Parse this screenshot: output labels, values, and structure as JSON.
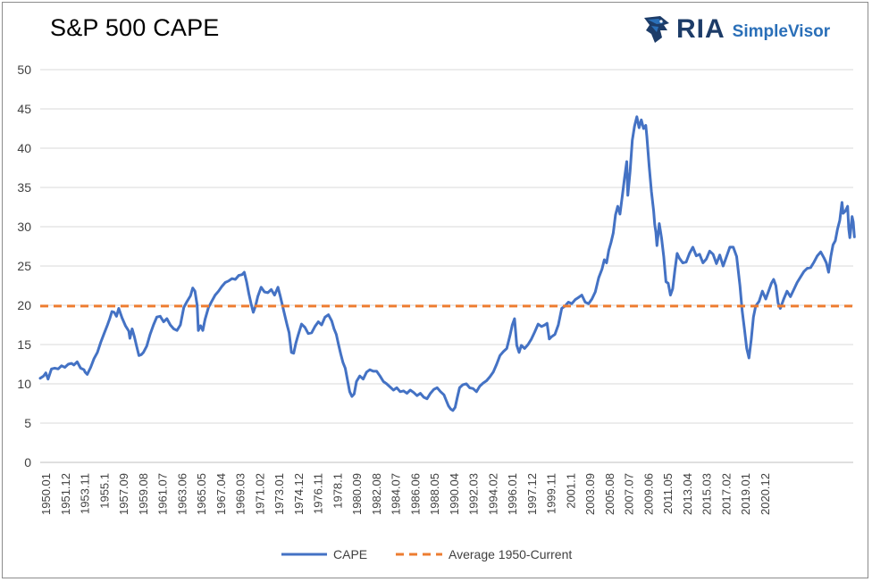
{
  "header": {
    "title": "S&P 500 CAPE",
    "logo_ria": "RIA",
    "logo_simplevisor": "SimpleVisor",
    "logo_icon": "eagle-head-icon"
  },
  "colors": {
    "cape_line": "#4472C4",
    "average_line": "#ED7D31",
    "gridline": "#d9d9d9",
    "logo_dark": "#1d3c68",
    "logo_light": "#2a6fb8"
  },
  "chart_data": {
    "type": "line",
    "title": "S&P 500 CAPE",
    "xlabel": "",
    "ylabel": "",
    "ylim": [
      0,
      50
    ],
    "yticks": [
      0,
      5,
      10,
      15,
      20,
      25,
      30,
      35,
      40,
      45,
      50
    ],
    "xlim": [
      1950.0,
      2022.5
    ],
    "grid": true,
    "legend": "bottom",
    "x_tick_labels": [
      "1950.01",
      "1951.12",
      "1953.11",
      "1955.1",
      "1957.09",
      "1959.08",
      "1961.07",
      "1963.06",
      "1965.05",
      "1967.04",
      "1969.03",
      "1971.02",
      "1973.01",
      "1974.12",
      "1976.11",
      "1978.1",
      "1980.09",
      "1982.08",
      "1984.07",
      "1986.06",
      "1988.05",
      "1990.04",
      "1992.03",
      "1994.02",
      "1996.01",
      "1997.12",
      "1999.11",
      "2001.1",
      "2003.09",
      "2005.08",
      "2007.07",
      "2009.06",
      "2011.05",
      "2013.04",
      "2015.03",
      "2017.02",
      "2019.01",
      "2020.12"
    ],
    "series": [
      {
        "name": "CAPE",
        "style": "solid",
        "points": [
          [
            1950.0,
            10.7
          ],
          [
            1950.3,
            11.0
          ],
          [
            1950.5,
            11.4
          ],
          [
            1950.7,
            10.6
          ],
          [
            1951.0,
            11.9
          ],
          [
            1951.3,
            12.0
          ],
          [
            1951.6,
            11.9
          ],
          [
            1951.9,
            12.3
          ],
          [
            1952.2,
            12.1
          ],
          [
            1952.5,
            12.5
          ],
          [
            1952.8,
            12.6
          ],
          [
            1953.0,
            12.4
          ],
          [
            1953.3,
            12.8
          ],
          [
            1953.6,
            12.0
          ],
          [
            1953.9,
            11.8
          ],
          [
            1954.0,
            11.5
          ],
          [
            1954.2,
            11.2
          ],
          [
            1954.5,
            12.1
          ],
          [
            1954.8,
            13.2
          ],
          [
            1955.1,
            14.0
          ],
          [
            1955.4,
            15.3
          ],
          [
            1955.7,
            16.4
          ],
          [
            1956.0,
            17.5
          ],
          [
            1956.2,
            18.3
          ],
          [
            1956.4,
            19.2
          ],
          [
            1956.6,
            19.1
          ],
          [
            1956.8,
            18.6
          ],
          [
            1957.0,
            19.6
          ],
          [
            1957.3,
            18.4
          ],
          [
            1957.6,
            17.4
          ],
          [
            1957.9,
            16.7
          ],
          [
            1958.0,
            15.8
          ],
          [
            1958.2,
            17.0
          ],
          [
            1958.4,
            16.0
          ],
          [
            1958.6,
            14.8
          ],
          [
            1958.8,
            13.6
          ],
          [
            1959.0,
            13.7
          ],
          [
            1959.2,
            14.0
          ],
          [
            1959.5,
            14.8
          ],
          [
            1959.8,
            16.3
          ],
          [
            1960.1,
            17.5
          ],
          [
            1960.4,
            18.5
          ],
          [
            1960.7,
            18.6
          ],
          [
            1961.0,
            17.9
          ],
          [
            1961.3,
            18.3
          ],
          [
            1961.6,
            17.5
          ],
          [
            1961.9,
            17.0
          ],
          [
            1962.2,
            16.8
          ],
          [
            1962.5,
            17.5
          ],
          [
            1962.8,
            19.7
          ],
          [
            1963.1,
            20.5
          ],
          [
            1963.4,
            21.2
          ],
          [
            1963.6,
            22.2
          ],
          [
            1963.8,
            21.8
          ],
          [
            1964.0,
            20.0
          ],
          [
            1964.1,
            16.8
          ],
          [
            1964.3,
            17.4
          ],
          [
            1964.5,
            16.8
          ],
          [
            1964.7,
            18.2
          ],
          [
            1965.0,
            19.7
          ],
          [
            1965.3,
            20.5
          ],
          [
            1965.6,
            21.3
          ],
          [
            1965.9,
            21.8
          ],
          [
            1966.2,
            22.4
          ],
          [
            1966.5,
            22.9
          ],
          [
            1966.8,
            23.1
          ],
          [
            1967.1,
            23.4
          ],
          [
            1967.4,
            23.3
          ],
          [
            1967.7,
            23.8
          ],
          [
            1968.0,
            23.9
          ],
          [
            1968.2,
            24.2
          ],
          [
            1968.4,
            23.0
          ],
          [
            1968.6,
            21.5
          ],
          [
            1968.8,
            20.2
          ],
          [
            1969.0,
            19.1
          ],
          [
            1969.2,
            19.9
          ],
          [
            1969.4,
            21.1
          ],
          [
            1969.7,
            22.3
          ],
          [
            1970.0,
            21.7
          ],
          [
            1970.3,
            21.6
          ],
          [
            1970.6,
            22.0
          ],
          [
            1970.9,
            21.3
          ],
          [
            1971.2,
            22.3
          ],
          [
            1971.4,
            21.2
          ],
          [
            1971.6,
            20.0
          ],
          [
            1971.8,
            18.8
          ],
          [
            1972.0,
            17.6
          ],
          [
            1972.2,
            16.5
          ],
          [
            1972.4,
            14.0
          ],
          [
            1972.6,
            13.9
          ],
          [
            1972.8,
            15.2
          ],
          [
            1973.0,
            16.2
          ],
          [
            1973.3,
            17.6
          ],
          [
            1973.6,
            17.2
          ],
          [
            1973.9,
            16.4
          ],
          [
            1974.2,
            16.5
          ],
          [
            1974.5,
            17.3
          ],
          [
            1974.8,
            17.9
          ],
          [
            1975.1,
            17.5
          ],
          [
            1975.4,
            18.5
          ],
          [
            1975.7,
            18.8
          ],
          [
            1976.0,
            18.0
          ],
          [
            1976.2,
            17.0
          ],
          [
            1976.4,
            16.3
          ],
          [
            1976.6,
            15.0
          ],
          [
            1976.8,
            13.8
          ],
          [
            1977.0,
            12.7
          ],
          [
            1977.2,
            12.0
          ],
          [
            1977.4,
            10.5
          ],
          [
            1977.6,
            9.0
          ],
          [
            1977.8,
            8.4
          ],
          [
            1978.0,
            8.7
          ],
          [
            1978.2,
            10.3
          ],
          [
            1978.5,
            11.0
          ],
          [
            1978.8,
            10.6
          ],
          [
            1979.1,
            11.5
          ],
          [
            1979.4,
            11.8
          ],
          [
            1979.7,
            11.6
          ],
          [
            1980.0,
            11.6
          ],
          [
            1980.3,
            11.0
          ],
          [
            1980.6,
            10.3
          ],
          [
            1980.9,
            10.0
          ],
          [
            1981.2,
            9.6
          ],
          [
            1981.5,
            9.2
          ],
          [
            1981.8,
            9.5
          ],
          [
            1982.1,
            9.0
          ],
          [
            1982.4,
            9.1
          ],
          [
            1982.7,
            8.8
          ],
          [
            1983.0,
            9.2
          ],
          [
            1983.3,
            8.9
          ],
          [
            1983.6,
            8.5
          ],
          [
            1983.9,
            8.8
          ],
          [
            1984.2,
            8.3
          ],
          [
            1984.5,
            8.1
          ],
          [
            1984.8,
            8.8
          ],
          [
            1985.1,
            9.3
          ],
          [
            1985.4,
            9.5
          ],
          [
            1985.7,
            9.0
          ],
          [
            1986.0,
            8.6
          ],
          [
            1986.2,
            7.9
          ],
          [
            1986.4,
            7.2
          ],
          [
            1986.6,
            6.8
          ],
          [
            1986.8,
            6.6
          ],
          [
            1987.0,
            7.0
          ],
          [
            1987.2,
            8.3
          ],
          [
            1987.4,
            9.5
          ],
          [
            1987.7,
            9.9
          ],
          [
            1988.0,
            10.0
          ],
          [
            1988.3,
            9.5
          ],
          [
            1988.6,
            9.4
          ],
          [
            1988.9,
            9.0
          ],
          [
            1989.2,
            9.7
          ],
          [
            1989.5,
            10.1
          ],
          [
            1989.8,
            10.4
          ],
          [
            1990.1,
            10.9
          ],
          [
            1990.4,
            11.5
          ],
          [
            1990.7,
            12.5
          ],
          [
            1991.0,
            13.6
          ],
          [
            1991.3,
            14.1
          ],
          [
            1991.6,
            14.5
          ],
          [
            1991.9,
            16.2
          ],
          [
            1992.1,
            17.5
          ],
          [
            1992.3,
            18.3
          ],
          [
            1992.5,
            14.9
          ],
          [
            1992.7,
            14.0
          ],
          [
            1992.9,
            14.9
          ],
          [
            1993.2,
            14.5
          ],
          [
            1993.5,
            15.0
          ],
          [
            1993.8,
            15.7
          ],
          [
            1994.1,
            16.6
          ],
          [
            1994.4,
            17.6
          ],
          [
            1994.7,
            17.3
          ],
          [
            1995.0,
            17.5
          ],
          [
            1995.2,
            17.7
          ],
          [
            1995.4,
            15.7
          ],
          [
            1995.6,
            16.0
          ],
          [
            1995.9,
            16.3
          ],
          [
            1996.2,
            17.5
          ],
          [
            1996.5,
            19.6
          ],
          [
            1996.8,
            19.9
          ],
          [
            1997.1,
            20.4
          ],
          [
            1997.4,
            20.2
          ],
          [
            1997.7,
            20.7
          ],
          [
            1998.0,
            21.0
          ],
          [
            1998.3,
            21.3
          ],
          [
            1998.6,
            20.4
          ],
          [
            1998.9,
            20.2
          ],
          [
            1999.2,
            20.8
          ],
          [
            1999.5,
            21.7
          ],
          [
            1999.8,
            23.5
          ],
          [
            2000.1,
            24.6
          ],
          [
            2000.3,
            25.8
          ],
          [
            2000.5,
            25.4
          ],
          [
            2000.7,
            27.0
          ],
          [
            2000.9,
            28.0
          ],
          [
            2001.1,
            29.2
          ],
          [
            2001.3,
            31.5
          ],
          [
            2001.5,
            32.6
          ],
          [
            2001.7,
            31.6
          ],
          [
            2001.9,
            33.8
          ],
          [
            2002.1,
            36.1
          ],
          [
            2002.3,
            38.3
          ],
          [
            2002.4,
            34.0
          ],
          [
            2002.6,
            37.0
          ],
          [
            2002.8,
            41.0
          ],
          [
            2003.0,
            42.8
          ],
          [
            2003.2,
            44.0
          ],
          [
            2003.4,
            42.6
          ],
          [
            2003.6,
            43.6
          ],
          [
            2003.8,
            42.5
          ],
          [
            2004.0,
            42.9
          ],
          [
            2004.1,
            41.5
          ],
          [
            2004.3,
            37.7
          ],
          [
            2004.5,
            34.5
          ],
          [
            2004.7,
            32.0
          ],
          [
            2004.8,
            30.3
          ],
          [
            2004.9,
            29.3
          ],
          [
            2005.0,
            27.6
          ],
          [
            2005.2,
            30.4
          ],
          [
            2005.4,
            28.6
          ],
          [
            2005.6,
            26.2
          ],
          [
            2005.8,
            23.0
          ],
          [
            2006.0,
            22.8
          ],
          [
            2006.2,
            21.3
          ],
          [
            2006.4,
            22.1
          ],
          [
            2006.6,
            24.5
          ],
          [
            2006.8,
            26.6
          ],
          [
            2007.0,
            26.0
          ],
          [
            2007.3,
            25.4
          ],
          [
            2007.6,
            25.5
          ],
          [
            2007.9,
            26.6
          ],
          [
            2008.2,
            27.4
          ],
          [
            2008.5,
            26.3
          ],
          [
            2008.8,
            26.5
          ],
          [
            2009.1,
            25.4
          ],
          [
            2009.4,
            25.9
          ],
          [
            2009.7,
            26.9
          ],
          [
            2010.0,
            26.5
          ],
          [
            2010.3,
            25.3
          ],
          [
            2010.6,
            26.4
          ],
          [
            2010.9,
            25.0
          ],
          [
            2011.2,
            26.2
          ],
          [
            2011.5,
            27.4
          ],
          [
            2011.8,
            27.4
          ],
          [
            2012.1,
            26.2
          ],
          [
            2012.4,
            22.5
          ],
          [
            2012.6,
            19.3
          ],
          [
            2012.8,
            17.0
          ],
          [
            2013.0,
            14.5
          ],
          [
            2013.2,
            13.3
          ],
          [
            2013.4,
            15.6
          ],
          [
            2013.6,
            18.5
          ],
          [
            2013.8,
            19.9
          ],
          [
            2014.1,
            20.5
          ],
          [
            2014.4,
            21.8
          ],
          [
            2014.7,
            20.8
          ],
          [
            2015.0,
            22.0
          ],
          [
            2015.2,
            22.8
          ],
          [
            2015.4,
            23.3
          ],
          [
            2015.6,
            22.5
          ],
          [
            2015.8,
            20.3
          ],
          [
            2016.0,
            19.6
          ],
          [
            2016.3,
            20.8
          ],
          [
            2016.6,
            21.8
          ],
          [
            2016.9,
            21.1
          ],
          [
            2017.2,
            22.0
          ],
          [
            2017.5,
            22.9
          ],
          [
            2017.8,
            23.6
          ],
          [
            2018.1,
            24.3
          ],
          [
            2018.4,
            24.7
          ],
          [
            2018.7,
            24.8
          ],
          [
            2019.0,
            25.5
          ],
          [
            2019.3,
            26.3
          ],
          [
            2019.6,
            26.8
          ],
          [
            2019.9,
            26.0
          ],
          [
            2020.1,
            25.4
          ],
          [
            2020.3,
            24.2
          ],
          [
            2020.5,
            26.2
          ],
          [
            2020.7,
            27.7
          ],
          [
            2020.9,
            28.2
          ],
          [
            2021.1,
            29.7
          ],
          [
            2021.3,
            30.8
          ],
          [
            2021.5,
            33.1
          ],
          [
            2021.6,
            31.7
          ],
          [
            2021.8,
            32.0
          ],
          [
            2022.0,
            32.6
          ],
          [
            2022.1,
            29.7
          ],
          [
            2022.2,
            28.6
          ],
          [
            2022.3,
            29.9
          ],
          [
            2022.4,
            31.3
          ],
          [
            2022.5,
            30.6
          ],
          [
            2022.6,
            28.7
          ]
        ]
      },
      {
        "name": "Average 1950-Current",
        "style": "dashed",
        "points": [
          [
            1950.0,
            19.9
          ],
          [
            2022.6,
            19.9
          ]
        ]
      }
    ]
  }
}
